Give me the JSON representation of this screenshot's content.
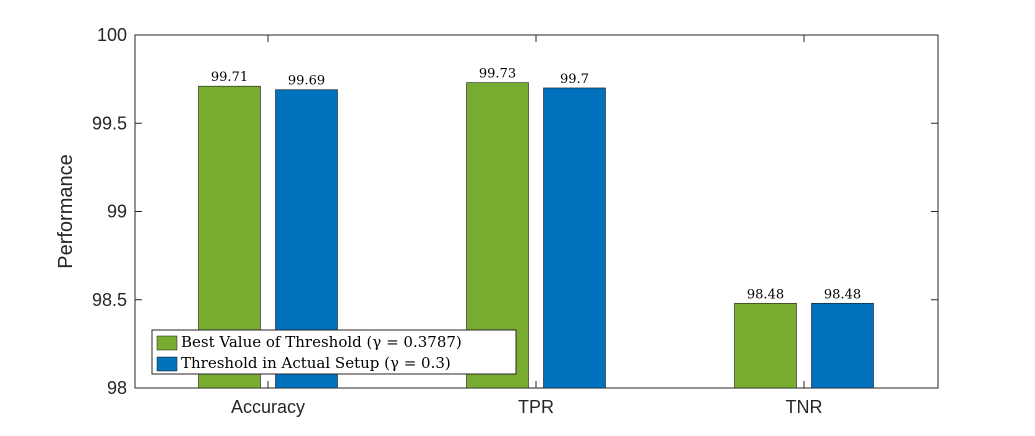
{
  "chart_data": {
    "type": "bar",
    "categories": [
      "Accuracy",
      "TPR",
      "TNR"
    ],
    "series": [
      {
        "name": "Best Value of Threshold (γ = 0.3787)",
        "values": [
          99.71,
          99.73,
          98.48
        ],
        "labels": [
          "99.71",
          "99.73",
          "98.48"
        ],
        "color": "#77ac30"
      },
      {
        "name": "Threshold in Actual Setup (γ = 0.3)",
        "values": [
          99.69,
          99.7,
          98.48
        ],
        "labels": [
          "99.69",
          "99.7",
          "98.48"
        ],
        "color": "#0072bd"
      }
    ],
    "title": "",
    "xlabel": "",
    "ylabel": "Performance",
    "ylim": [
      98,
      100
    ],
    "yticks": [
      "98",
      "98.5",
      "99",
      "99.5",
      "100"
    ],
    "grid": false,
    "legend_position": "bottom-left"
  }
}
